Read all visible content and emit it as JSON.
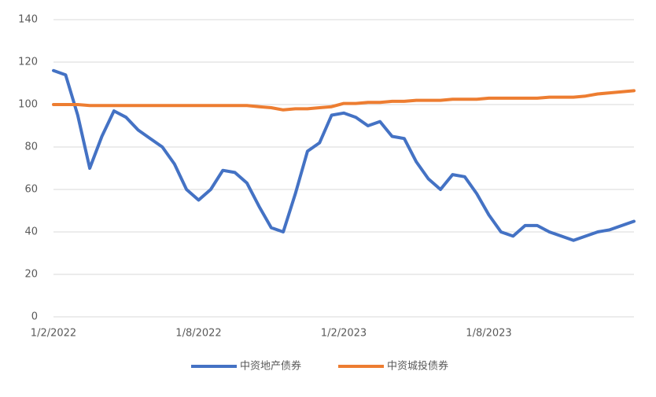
{
  "chart_data": {
    "type": "line",
    "categories": [
      "1/2/2022",
      null,
      null,
      null,
      null,
      null,
      null,
      null,
      null,
      null,
      null,
      null,
      "1/8/2022",
      null,
      null,
      null,
      null,
      null,
      null,
      null,
      null,
      null,
      null,
      null,
      "1/2/2023",
      null,
      null,
      null,
      null,
      null,
      null,
      null,
      null,
      null,
      null,
      null,
      "1/8/2023",
      null,
      null,
      null,
      null,
      null,
      null,
      null,
      null,
      null,
      null,
      null,
      null
    ],
    "series": [
      {
        "name": "中资地产债券",
        "color": "#4472c4",
        "values": [
          116,
          114,
          95,
          70,
          85,
          97,
          94,
          88,
          84,
          80,
          72,
          60,
          55,
          60,
          69,
          68,
          63,
          52,
          42,
          40,
          58,
          78,
          82,
          95,
          96,
          94,
          90,
          92,
          85,
          84,
          73,
          65,
          60,
          67,
          66,
          58,
          48,
          40,
          38,
          43,
          43,
          40,
          38,
          36,
          38,
          40,
          41,
          43,
          45
        ]
      },
      {
        "name": "中资城投债券",
        "color": "#ed7d31",
        "values": [
          100,
          100,
          100,
          99.5,
          99.5,
          99.5,
          99.5,
          99.5,
          99.5,
          99.5,
          99.5,
          99.5,
          99.5,
          99.5,
          99.5,
          99.5,
          99.5,
          99,
          98.5,
          97.5,
          98,
          98,
          98.5,
          99,
          100.5,
          100.5,
          101,
          101,
          101.5,
          101.5,
          102,
          102,
          102,
          102.5,
          102.5,
          102.5,
          103,
          103,
          103,
          103,
          103,
          103.5,
          103.5,
          103.5,
          104,
          105,
          105.5,
          106,
          106.5
        ]
      }
    ],
    "ylim": [
      0,
      140
    ],
    "yticks": [
      0,
      20,
      40,
      60,
      80,
      100,
      120,
      140
    ],
    "grid": true,
    "legend": "bottom"
  }
}
